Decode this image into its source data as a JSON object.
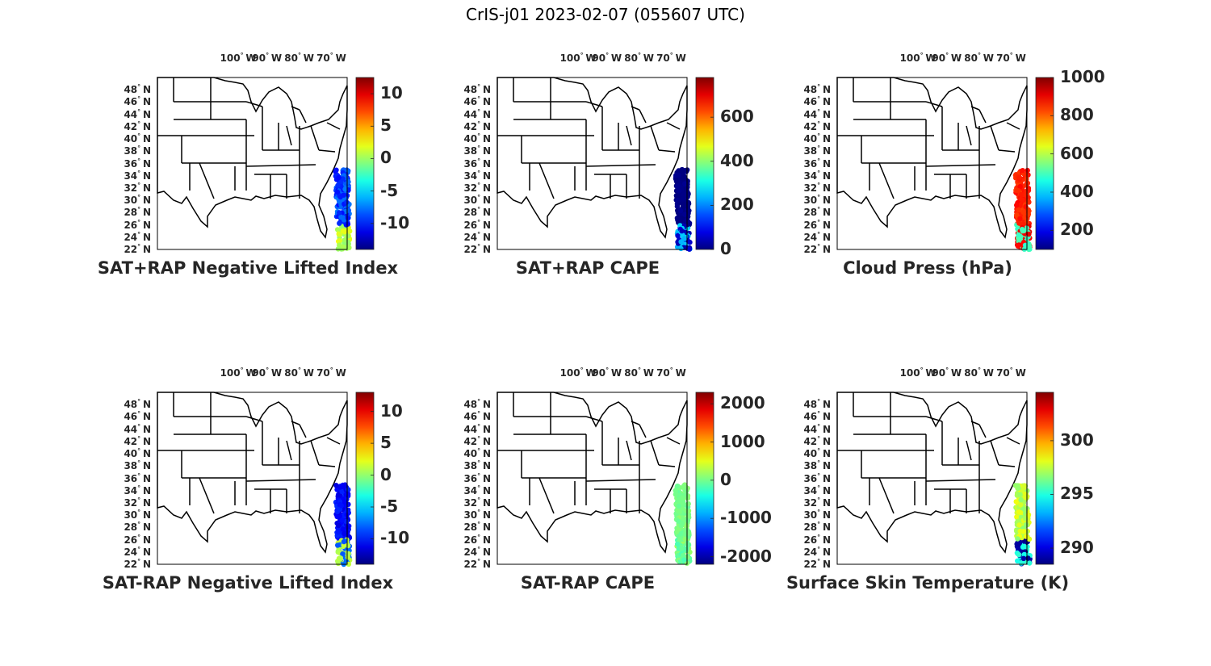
{
  "figure": {
    "title": "CrIS-j01 2023-02-07 (055607 UTC)"
  },
  "lon_labels": [
    "100",
    "90",
    "80",
    "70"
  ],
  "lon_suffix": "W",
  "lat_labels": [
    "48",
    "46",
    "44",
    "42",
    "40",
    "38",
    "36",
    "34",
    "32",
    "30",
    "28",
    "26",
    "24",
    "22"
  ],
  "lat_suffix": "N",
  "lat_values": [
    48,
    46,
    44,
    42,
    40,
    38,
    36,
    34,
    32,
    30,
    28,
    26,
    24,
    22
  ],
  "lon_values": [
    -100,
    -90,
    -80,
    -70
  ],
  "chart_data": [
    {
      "type": "scatter",
      "title": "SAT+RAP Negative Lifted Index",
      "colormap": "jet",
      "clim": [
        -14,
        12.5
      ],
      "colorbar_ticks": [
        10,
        5,
        0,
        -5,
        -10
      ],
      "xlim": [
        -125,
        -66
      ],
      "ylim": [
        22,
        50
      ],
      "swath": {
        "lon": [
          -69,
          -65
        ],
        "lat": [
          22,
          35
        ]
      },
      "dominant_values": [
        -8,
        -10,
        0,
        2
      ]
    },
    {
      "type": "scatter",
      "title": "SAT+RAP CAPE",
      "colormap": "jet",
      "clim": [
        0,
        780
      ],
      "colorbar_ticks": [
        600,
        400,
        200,
        0
      ],
      "xlim": [
        -125,
        -66
      ],
      "ylim": [
        22,
        50
      ],
      "swath": {
        "lon": [
          -69,
          -65
        ],
        "lat": [
          22,
          35
        ]
      },
      "dominant_values": [
        0,
        0,
        50,
        250
      ]
    },
    {
      "type": "scatter",
      "title": "Cloud Press (hPa)",
      "colormap": "jet",
      "clim": [
        100,
        1000
      ],
      "colorbar_ticks": [
        1000,
        800,
        600,
        400,
        200
      ],
      "xlim": [
        -125,
        -66
      ],
      "ylim": [
        22,
        50
      ],
      "swath": {
        "lon": [
          -69,
          -65
        ],
        "lat": [
          22,
          35
        ]
      },
      "dominant_values": [
        850,
        870,
        900,
        500
      ]
    },
    {
      "type": "scatter",
      "title": "SAT-RAP Negative Lifted Index",
      "colormap": "jet",
      "clim": [
        -14,
        13
      ],
      "colorbar_ticks": [
        10,
        5,
        0,
        -5,
        -10
      ],
      "xlim": [
        -125,
        -66
      ],
      "ylim": [
        22,
        50
      ],
      "swath": {
        "lon": [
          -69,
          -65
        ],
        "lat": [
          22,
          35
        ]
      },
      "dominant_values": [
        -10,
        -11,
        -8,
        1
      ]
    },
    {
      "type": "scatter",
      "title": "SAT-RAP CAPE",
      "colormap": "jet",
      "clim": [
        -2200,
        2300
      ],
      "colorbar_ticks": [
        2000,
        1000,
        0,
        -1000,
        -2000
      ],
      "xlim": [
        -125,
        -66
      ],
      "ylim": [
        22,
        50
      ],
      "swath": {
        "lon": [
          -69,
          -65
        ],
        "lat": [
          22,
          35
        ]
      },
      "dominant_values": [
        0,
        50,
        -100,
        100
      ]
    },
    {
      "type": "scatter",
      "title": "Surface Skin Temperature (K)",
      "colormap": "jet",
      "clim": [
        288.5,
        304.5
      ],
      "colorbar_ticks": [
        300,
        295,
        290
      ],
      "xlim": [
        -125,
        -66
      ],
      "ylim": [
        22,
        50
      ],
      "swath": {
        "lon": [
          -69,
          -65
        ],
        "lat": [
          22,
          35
        ]
      },
      "dominant_values": [
        298,
        297,
        295,
        289
      ]
    }
  ]
}
